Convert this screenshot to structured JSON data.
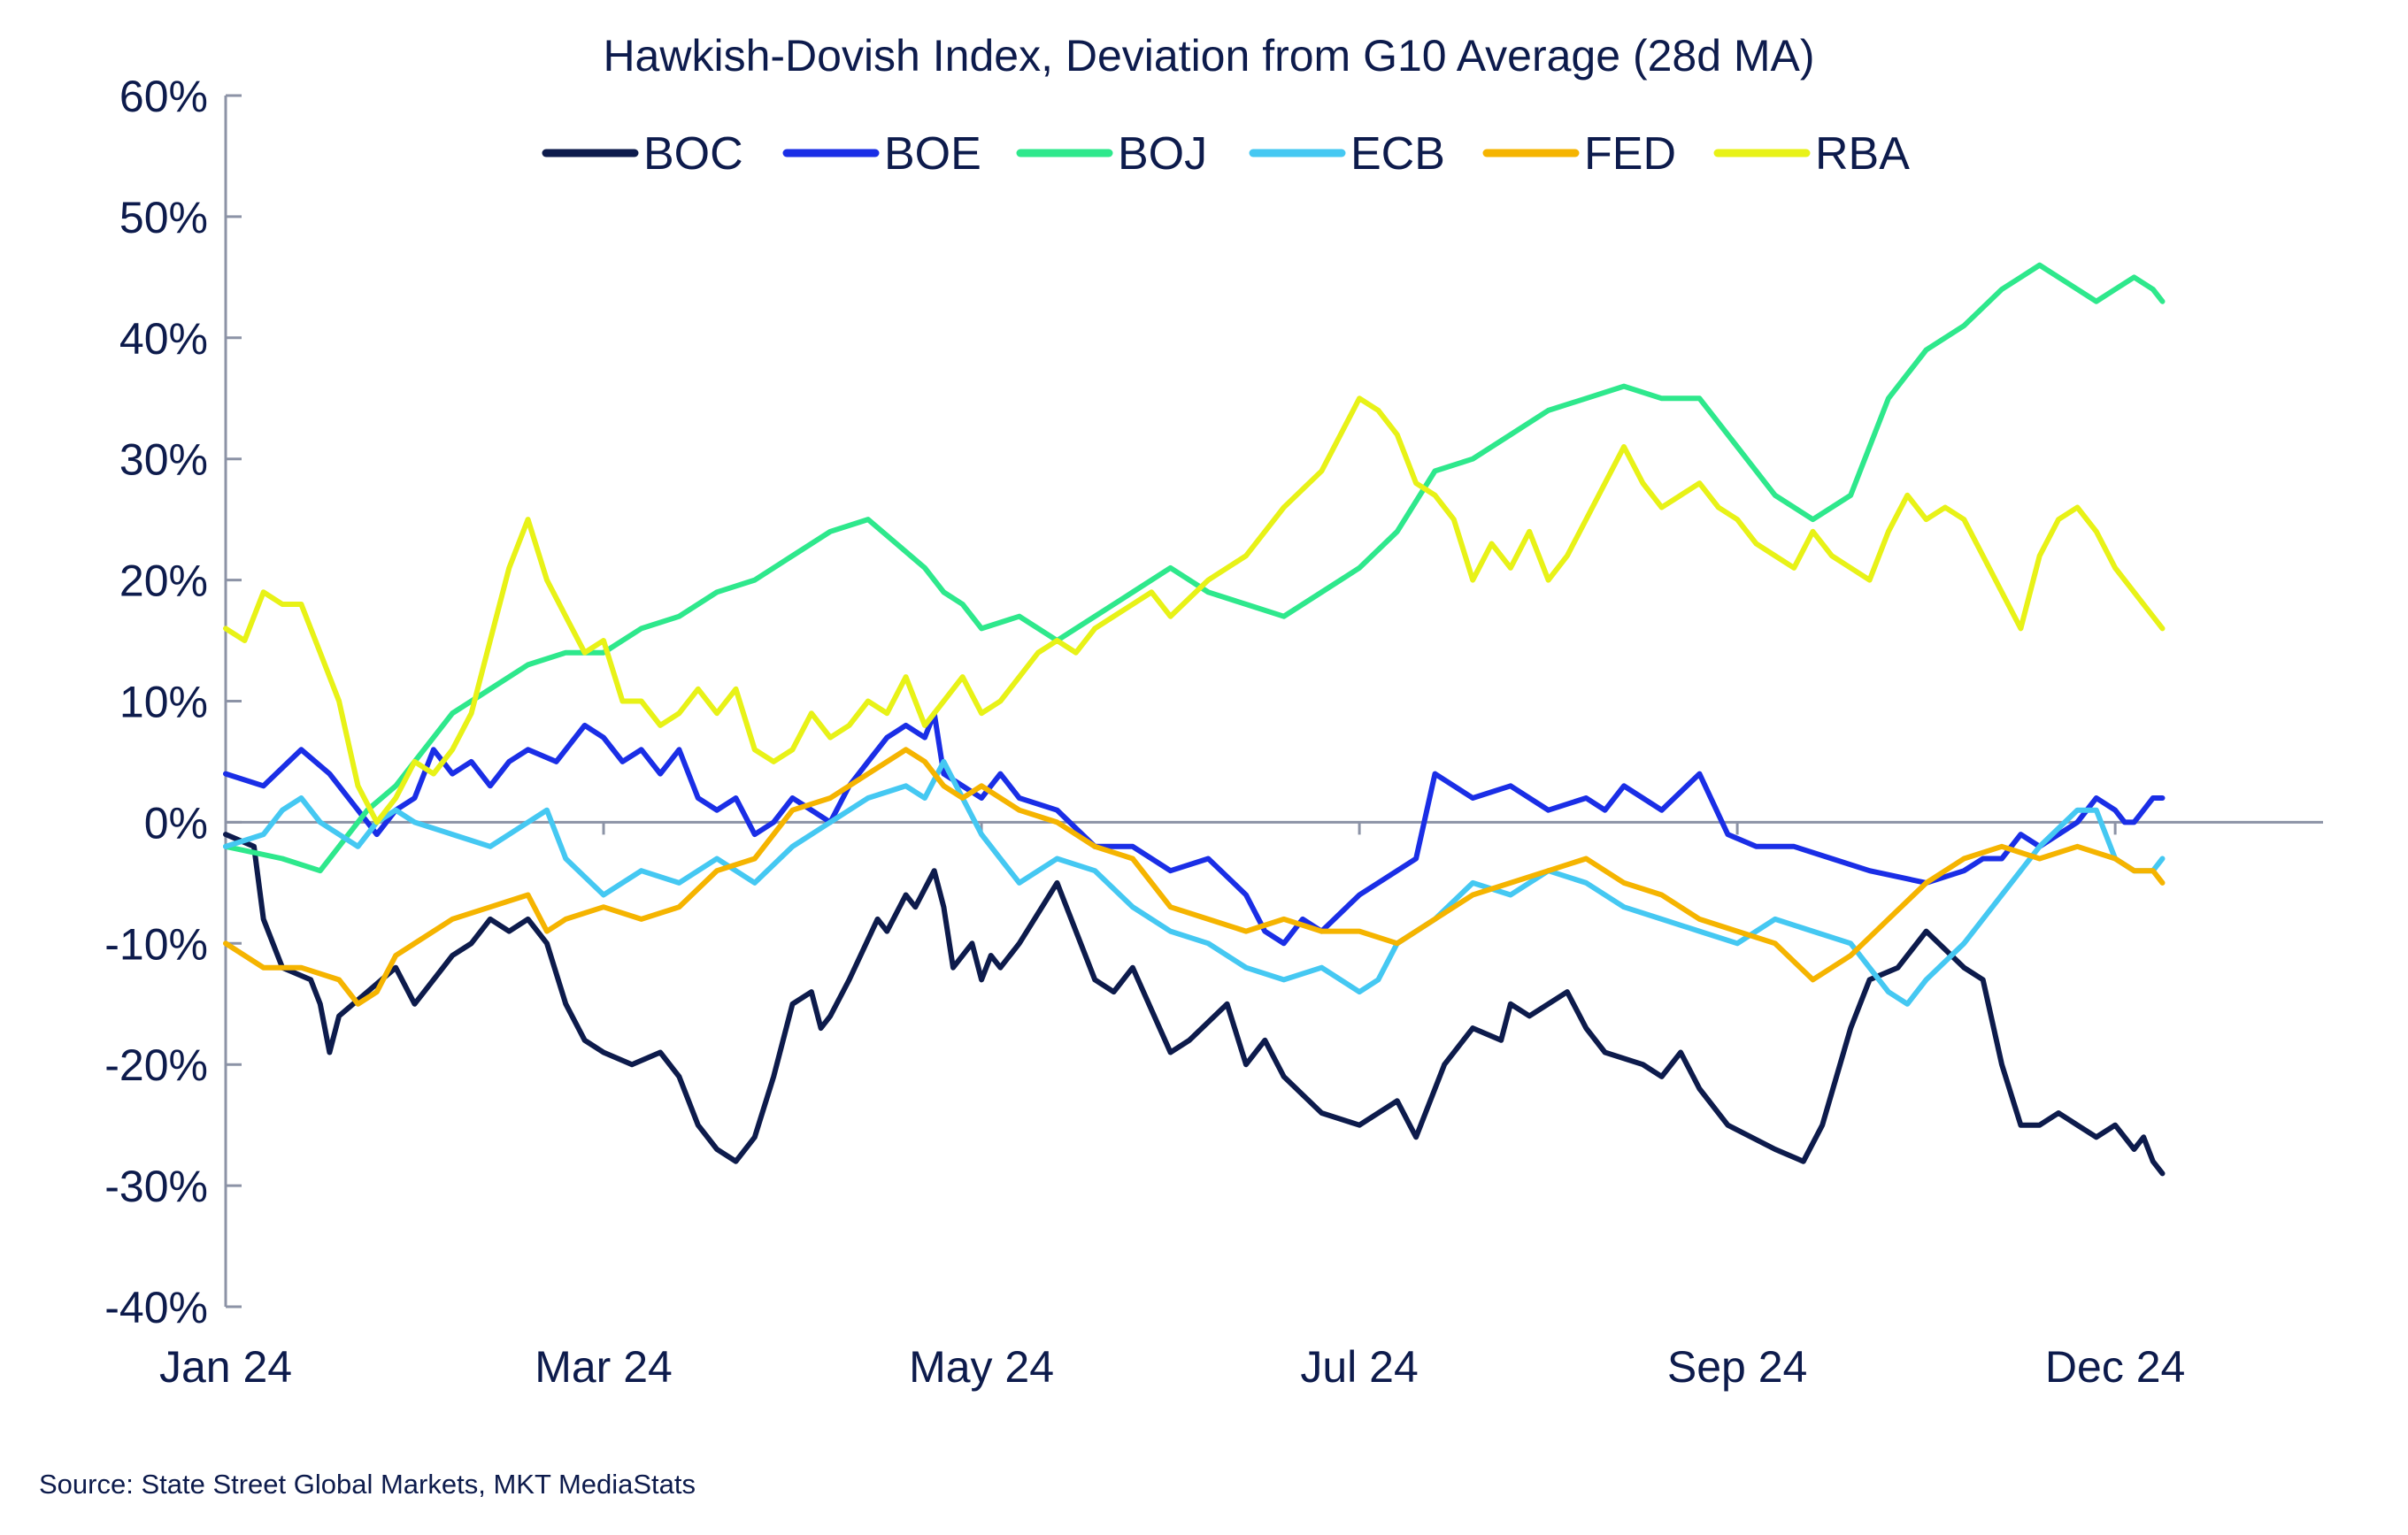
{
  "chart_data": {
    "type": "line",
    "title": "Hawkish-Dovish Index, Deviation from G10 Average (28d MA)",
    "xlabel": "",
    "ylabel": "",
    "ylim": [
      -40,
      60
    ],
    "xlim": [
      0,
      11.1
    ],
    "grid": false,
    "legend_position": "top",
    "y_ticks": [
      {
        "value": 60,
        "label": "60%"
      },
      {
        "value": 50,
        "label": "50%"
      },
      {
        "value": 40,
        "label": "40%"
      },
      {
        "value": 30,
        "label": "30%"
      },
      {
        "value": 20,
        "label": "20%"
      },
      {
        "value": 10,
        "label": "10%"
      },
      {
        "value": 0,
        "label": "0%"
      },
      {
        "value": -10,
        "label": "-10%"
      },
      {
        "value": -20,
        "label": "-20%"
      },
      {
        "value": -30,
        "label": "-30%"
      },
      {
        "value": -40,
        "label": "-40%"
      }
    ],
    "x_ticks": [
      {
        "value": 0,
        "label": "Jan 24"
      },
      {
        "value": 2,
        "label": "Mar 24"
      },
      {
        "value": 4,
        "label": "May 24"
      },
      {
        "value": 6,
        "label": "Jul 24"
      },
      {
        "value": 8,
        "label": "Sep 24"
      },
      {
        "value": 10,
        "label": "Dec 24"
      }
    ],
    "series": [
      {
        "name": "BOC",
        "color": "#0d1b4c",
        "x": [
          0,
          0.15,
          0.2,
          0.3,
          0.45,
          0.5,
          0.55,
          0.6,
          0.75,
          0.9,
          1.0,
          1.2,
          1.3,
          1.4,
          1.5,
          1.6,
          1.7,
          1.8,
          1.9,
          2.0,
          2.15,
          2.3,
          2.4,
          2.5,
          2.6,
          2.7,
          2.8,
          2.9,
          3.0,
          3.1,
          3.15,
          3.2,
          3.3,
          3.45,
          3.5,
          3.6,
          3.65,
          3.75,
          3.8,
          3.85,
          3.95,
          4.0,
          4.05,
          4.1,
          4.2,
          4.4,
          4.6,
          4.7,
          4.8,
          5.0,
          5.1,
          5.3,
          5.4,
          5.5,
          5.6,
          5.8,
          6.0,
          6.2,
          6.3,
          6.45,
          6.6,
          6.75,
          6.8,
          6.9,
          7.1,
          7.2,
          7.3,
          7.5,
          7.6,
          7.7,
          7.8,
          7.95,
          8.2,
          8.35,
          8.45,
          8.6,
          8.7,
          8.85,
          9.0,
          9.2,
          9.3,
          9.4,
          9.5,
          9.6,
          9.7,
          9.8,
          9.9,
          10.0,
          10.1,
          10.15,
          10.2,
          10.25
        ],
        "values": [
          -1,
          -2,
          -8,
          -12,
          -13,
          -15,
          -19,
          -16,
          -14,
          -12,
          -15,
          -11,
          -10,
          -8,
          -9,
          -8,
          -10,
          -15,
          -18,
          -19,
          -20,
          -19,
          -21,
          -25,
          -27,
          -28,
          -26,
          -21,
          -15,
          -14,
          -17,
          -16,
          -13,
          -8,
          -9,
          -6,
          -7,
          -4,
          -7,
          -12,
          -10,
          -13,
          -11,
          -12,
          -10,
          -5,
          -13,
          -14,
          -12,
          -19,
          -18,
          -15,
          -20,
          -18,
          -21,
          -24,
          -25,
          -23,
          -26,
          -20,
          -17,
          -18,
          -15,
          -16,
          -14,
          -17,
          -19,
          -20,
          -21,
          -19,
          -22,
          -25,
          -27,
          -28,
          -25,
          -17,
          -13,
          -12,
          -9,
          -12,
          -13,
          -20,
          -25,
          -25,
          -24,
          -25,
          -26,
          -25,
          -27,
          -26,
          -28,
          -29
        ]
      },
      {
        "name": "BOE",
        "color": "#1a2ee6",
        "x": [
          0,
          0.2,
          0.4,
          0.55,
          0.7,
          0.8,
          0.9,
          1.0,
          1.1,
          1.2,
          1.3,
          1.4,
          1.5,
          1.6,
          1.75,
          1.9,
          2.0,
          2.1,
          2.2,
          2.3,
          2.4,
          2.5,
          2.6,
          2.7,
          2.8,
          2.9,
          3.0,
          3.1,
          3.2,
          3.3,
          3.4,
          3.5,
          3.6,
          3.7,
          3.75,
          3.8,
          3.9,
          4.0,
          4.1,
          4.2,
          4.4,
          4.6,
          4.8,
          5.0,
          5.2,
          5.4,
          5.5,
          5.6,
          5.7,
          5.8,
          6.0,
          6.1,
          6.3,
          6.4,
          6.6,
          6.8,
          7.0,
          7.2,
          7.3,
          7.4,
          7.6,
          7.8,
          7.95,
          8.1,
          8.3,
          8.5,
          8.7,
          9.0,
          9.2,
          9.3,
          9.4,
          9.5,
          9.6,
          9.7,
          9.8,
          9.9,
          10.0,
          10.05,
          10.1,
          10.15,
          10.2,
          10.25
        ],
        "values": [
          4,
          3,
          6,
          4,
          1,
          -1,
          1,
          2,
          6,
          4,
          5,
          3,
          5,
          6,
          5,
          8,
          7,
          5,
          6,
          4,
          6,
          2,
          1,
          2,
          -1,
          0,
          2,
          1,
          0,
          3,
          5,
          7,
          8,
          7,
          9,
          4,
          3,
          2,
          4,
          2,
          1,
          -2,
          -2,
          -4,
          -3,
          -6,
          -9,
          -10,
          -8,
          -9,
          -6,
          -5,
          -3,
          4,
          2,
          3,
          1,
          2,
          1,
          3,
          1,
          4,
          -1,
          -2,
          -2,
          -3,
          -4,
          -5,
          -4,
          -3,
          -3,
          -1,
          -2,
          -1,
          0,
          2,
          1,
          0,
          0,
          1,
          2,
          2
        ]
      },
      {
        "name": "BOJ",
        "color": "#2ee88c",
        "x": [
          0,
          0.3,
          0.5,
          0.6,
          0.75,
          0.9,
          1.0,
          1.2,
          1.4,
          1.6,
          1.8,
          2.0,
          2.2,
          2.4,
          2.6,
          2.8,
          3.0,
          3.2,
          3.4,
          3.55,
          3.7,
          3.8,
          3.9,
          4.0,
          4.2,
          4.4,
          4.6,
          4.8,
          5.0,
          5.2,
          5.4,
          5.6,
          5.8,
          6.0,
          6.2,
          6.4,
          6.6,
          6.8,
          7.0,
          7.2,
          7.4,
          7.6,
          7.8,
          8.0,
          8.2,
          8.4,
          8.6,
          8.8,
          9.0,
          9.2,
          9.4,
          9.5,
          9.6,
          9.7,
          9.8,
          9.9,
          10.0,
          10.1,
          10.2,
          10.25
        ],
        "values": [
          -2,
          -3,
          -4,
          -2,
          1,
          3,
          5,
          9,
          11,
          13,
          14,
          14,
          16,
          17,
          19,
          20,
          22,
          24,
          25,
          23,
          21,
          19,
          18,
          16,
          17,
          15,
          17,
          19,
          21,
          19,
          18,
          17,
          19,
          21,
          24,
          29,
          30,
          32,
          34,
          35,
          36,
          35,
          35,
          31,
          27,
          25,
          27,
          35,
          39,
          41,
          44,
          45,
          46,
          45,
          44,
          43,
          44,
          45,
          44,
          43
        ]
      },
      {
        "name": "ECB",
        "color": "#45c8f2",
        "x": [
          0,
          0.2,
          0.3,
          0.4,
          0.5,
          0.6,
          0.7,
          0.8,
          0.9,
          1.0,
          1.2,
          1.4,
          1.6,
          1.7,
          1.8,
          2.0,
          2.2,
          2.4,
          2.6,
          2.8,
          3.0,
          3.2,
          3.4,
          3.6,
          3.7,
          3.8,
          3.9,
          4.0,
          4.1,
          4.2,
          4.4,
          4.6,
          4.8,
          5.0,
          5.2,
          5.4,
          5.6,
          5.8,
          6.0,
          6.1,
          6.2,
          6.4,
          6.6,
          6.8,
          7.0,
          7.2,
          7.4,
          7.6,
          7.8,
          8.0,
          8.2,
          8.4,
          8.6,
          8.8,
          8.9,
          9.0,
          9.2,
          9.4,
          9.6,
          9.8,
          9.9,
          10.0,
          10.1,
          10.2,
          10.25
        ],
        "values": [
          -2,
          -1,
          1,
          2,
          0,
          -1,
          -2,
          0,
          1,
          0,
          -1,
          -2,
          0,
          1,
          -3,
          -6,
          -4,
          -5,
          -3,
          -5,
          -2,
          0,
          2,
          3,
          2,
          5,
          2,
          -1,
          -3,
          -5,
          -3,
          -4,
          -7,
          -9,
          -10,
          -12,
          -13,
          -12,
          -14,
          -13,
          -10,
          -8,
          -5,
          -6,
          -4,
          -5,
          -7,
          -8,
          -9,
          -10,
          -8,
          -9,
          -10,
          -14,
          -15,
          -13,
          -10,
          -6,
          -2,
          1,
          1,
          -3,
          -4,
          -4,
          -3
        ]
      },
      {
        "name": "FED",
        "color": "#f5b400",
        "x": [
          0,
          0.2,
          0.4,
          0.6,
          0.7,
          0.8,
          0.9,
          1.0,
          1.2,
          1.4,
          1.6,
          1.7,
          1.8,
          2.0,
          2.2,
          2.4,
          2.6,
          2.8,
          3.0,
          3.2,
          3.4,
          3.6,
          3.7,
          3.8,
          3.9,
          4.0,
          4.2,
          4.4,
          4.6,
          4.8,
          5.0,
          5.2,
          5.4,
          5.6,
          5.8,
          6.0,
          6.2,
          6.4,
          6.6,
          6.8,
          7.0,
          7.2,
          7.4,
          7.6,
          7.8,
          8.0,
          8.2,
          8.4,
          8.6,
          8.8,
          9.0,
          9.2,
          9.4,
          9.6,
          9.8,
          10.0,
          10.1,
          10.2,
          10.25
        ],
        "values": [
          -10,
          -12,
          -12,
          -13,
          -15,
          -14,
          -11,
          -10,
          -8,
          -7,
          -6,
          -9,
          -8,
          -7,
          -8,
          -7,
          -4,
          -3,
          1,
          2,
          4,
          6,
          5,
          3,
          2,
          3,
          1,
          0,
          -2,
          -3,
          -7,
          -8,
          -9,
          -8,
          -9,
          -9,
          -10,
          -8,
          -6,
          -5,
          -4,
          -3,
          -5,
          -6,
          -8,
          -9,
          -10,
          -13,
          -11,
          -8,
          -5,
          -3,
          -2,
          -3,
          -2,
          -3,
          -4,
          -4,
          -5
        ]
      },
      {
        "name": "RBA",
        "color": "#e8f217",
        "x": [
          0,
          0.1,
          0.2,
          0.3,
          0.4,
          0.5,
          0.6,
          0.7,
          0.8,
          0.9,
          1.0,
          1.1,
          1.2,
          1.3,
          1.4,
          1.5,
          1.6,
          1.7,
          1.8,
          1.9,
          2.0,
          2.1,
          2.2,
          2.3,
          2.4,
          2.5,
          2.6,
          2.7,
          2.8,
          2.9,
          3.0,
          3.1,
          3.2,
          3.3,
          3.4,
          3.5,
          3.6,
          3.7,
          3.8,
          3.9,
          4.0,
          4.1,
          4.2,
          4.3,
          4.4,
          4.5,
          4.6,
          4.7,
          4.8,
          4.9,
          5.0,
          5.2,
          5.4,
          5.6,
          5.8,
          6.0,
          6.1,
          6.2,
          6.3,
          6.4,
          6.5,
          6.6,
          6.7,
          6.8,
          6.9,
          7.0,
          7.1,
          7.2,
          7.3,
          7.4,
          7.5,
          7.6,
          7.7,
          7.8,
          7.9,
          8.0,
          8.1,
          8.2,
          8.3,
          8.4,
          8.5,
          8.6,
          8.7,
          8.8,
          8.9,
          9.0,
          9.1,
          9.2,
          9.3,
          9.4,
          9.5,
          9.6,
          9.7,
          9.8,
          9.9,
          10.0,
          10.1,
          10.2,
          10.25
        ],
        "values": [
          16,
          15,
          19,
          18,
          18,
          14,
          10,
          3,
          0,
          2,
          5,
          4,
          6,
          9,
          15,
          21,
          25,
          20,
          17,
          14,
          15,
          10,
          10,
          8,
          9,
          11,
          9,
          11,
          6,
          5,
          6,
          9,
          7,
          8,
          10,
          9,
          12,
          8,
          10,
          12,
          9,
          10,
          12,
          14,
          15,
          14,
          16,
          17,
          18,
          19,
          17,
          20,
          22,
          26,
          29,
          35,
          34,
          32,
          28,
          27,
          25,
          20,
          23,
          21,
          24,
          20,
          22,
          25,
          28,
          31,
          28,
          26,
          27,
          28,
          26,
          25,
          23,
          22,
          21,
          24,
          22,
          21,
          20,
          24,
          27,
          25,
          26,
          25,
          22,
          19,
          16,
          22,
          25,
          26,
          24,
          21,
          19,
          17,
          16
        ]
      }
    ],
    "source": "Source: State Street Global Markets, MKT MediaStats"
  }
}
